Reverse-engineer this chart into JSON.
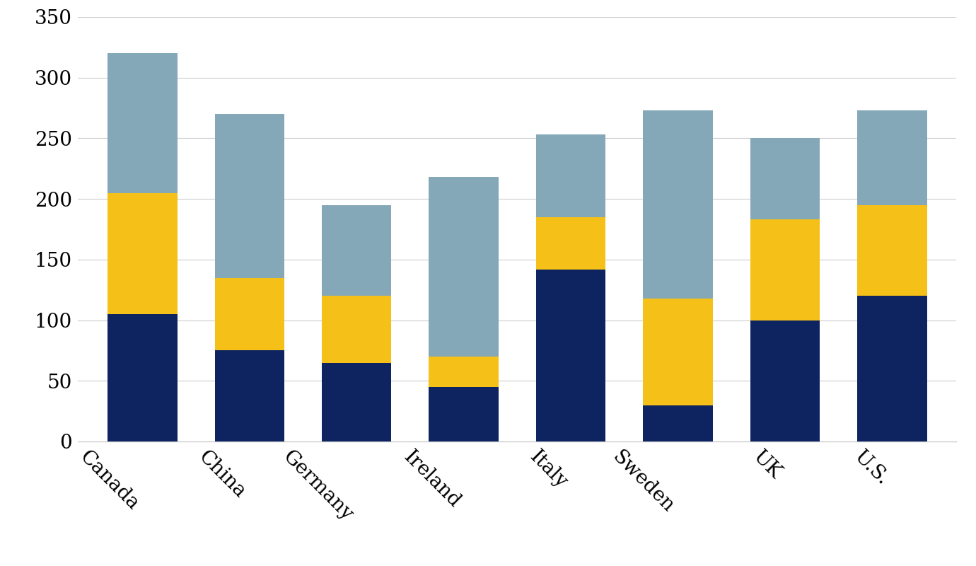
{
  "categories": [
    "Canada",
    "China",
    "Germany",
    "Ireland",
    "Italy",
    "Sweden",
    "UK",
    "U.S."
  ],
  "dark_blue": [
    105,
    75,
    65,
    45,
    142,
    30,
    100,
    120
  ],
  "yellow": [
    100,
    60,
    55,
    25,
    43,
    88,
    83,
    75
  ],
  "light_blue": [
    115,
    135,
    75,
    148,
    68,
    155,
    67,
    78
  ],
  "color_dark_blue": "#0d2461",
  "color_yellow": "#f5c018",
  "color_light_blue": "#85a8b8",
  "ylim": [
    0,
    350
  ],
  "yticks": [
    0,
    50,
    100,
    150,
    200,
    250,
    300,
    350
  ],
  "background_color": "#ffffff",
  "grid_color": "#cccccc",
  "bar_width": 0.65,
  "figsize": [
    13.8,
    8.0
  ],
  "dpi": 100,
  "tick_fontsize": 20,
  "label_rotation": -45
}
